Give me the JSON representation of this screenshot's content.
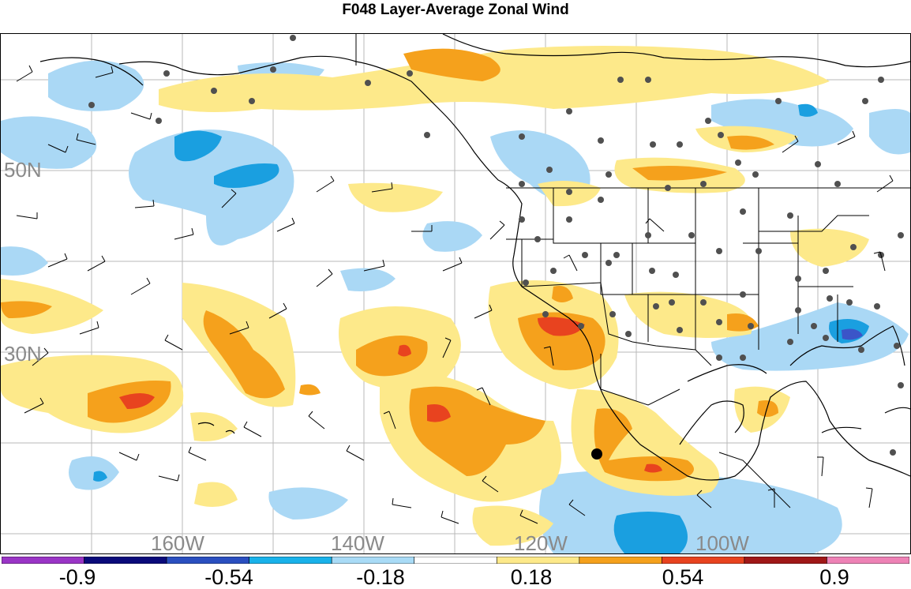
{
  "title": "F048 Layer-Average Zonal Wind",
  "map": {
    "lat_labels": [
      "50N",
      "30N"
    ],
    "lon_labels": [
      "160W",
      "140W",
      "120W",
      "100W"
    ],
    "marker_note": ""
  },
  "colorbar": {
    "tick_labels": [
      "-0.9",
      "-0.54",
      "-0.18",
      "0.18",
      "0.54",
      "0.9"
    ],
    "colors": [
      "#9a35c6",
      "#0a0a7a",
      "#2a4fc0",
      "#19b2ea",
      "#a9dbf6",
      "#ffffff",
      "#fde98a",
      "#f5a11c",
      "#e8431f",
      "#a01818",
      "#ee82b6"
    ]
  },
  "legend_colors": {
    "strong_negative": "#1a9fe0",
    "negative": "#aad8f5",
    "positive": "#fde98a",
    "strong_positive": "#f5a11c",
    "very_strong_positive": "#e8431f",
    "deep_negative": "#3b55c8"
  },
  "icons": [
    "station-dot",
    "wind-barb",
    "storm-center-marker"
  ]
}
